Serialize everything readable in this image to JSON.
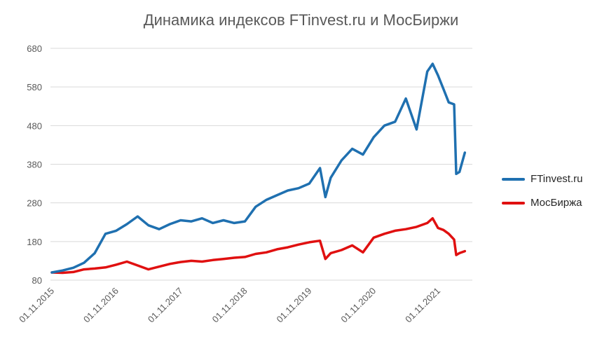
{
  "chart_data": {
    "type": "line",
    "title": "Динамика индексов FTinvest.ru и МосБиржи",
    "xlabel": "",
    "ylabel": "",
    "ylim": [
      80,
      680
    ],
    "yticks": [
      80,
      180,
      280,
      380,
      480,
      580,
      680
    ],
    "xticks": [
      "01.11.2015",
      "01.11.2016",
      "01.11.2017",
      "01.11.2018",
      "01.11.2019",
      "01.11.2020",
      "01.11.2021"
    ],
    "grid": true,
    "legend_position": "right",
    "x": [
      "2015-11",
      "2016-01",
      "2016-03",
      "2016-05",
      "2016-07",
      "2016-09",
      "2016-11",
      "2017-01",
      "2017-03",
      "2017-05",
      "2017-07",
      "2017-09",
      "2017-11",
      "2018-01",
      "2018-03",
      "2018-05",
      "2018-07",
      "2018-09",
      "2018-11",
      "2019-01",
      "2019-03",
      "2019-05",
      "2019-07",
      "2019-09",
      "2019-11",
      "2020-01",
      "2020-02",
      "2020-03",
      "2020-05",
      "2020-07",
      "2020-09",
      "2020-11",
      "2021-01",
      "2021-03",
      "2021-05",
      "2021-07",
      "2021-09",
      "2021-10",
      "2021-11",
      "2021-12",
      "2022-01",
      "2022-02",
      "2022-02",
      "2022-03",
      "2022-04"
    ],
    "series": [
      {
        "name": "FTinvest.ru",
        "color": "#1f70b0",
        "values": [
          100,
          105,
          112,
          125,
          150,
          200,
          208,
          225,
          245,
          222,
          212,
          225,
          235,
          232,
          240,
          228,
          235,
          228,
          232,
          270,
          288,
          300,
          312,
          318,
          330,
          370,
          295,
          345,
          390,
          420,
          405,
          450,
          480,
          490,
          550,
          470,
          620,
          640,
          610,
          575,
          540,
          535,
          355,
          360,
          410
        ]
      },
      {
        "name": "МосБиржа",
        "color": "#e01010",
        "values": [
          100,
          99,
          101,
          108,
          110,
          113,
          120,
          128,
          118,
          108,
          115,
          122,
          127,
          130,
          128,
          132,
          135,
          138,
          140,
          148,
          152,
          160,
          165,
          172,
          178,
          182,
          135,
          150,
          158,
          170,
          152,
          190,
          200,
          208,
          212,
          218,
          228,
          240,
          215,
          210,
          200,
          185,
          145,
          150,
          155
        ]
      }
    ]
  }
}
